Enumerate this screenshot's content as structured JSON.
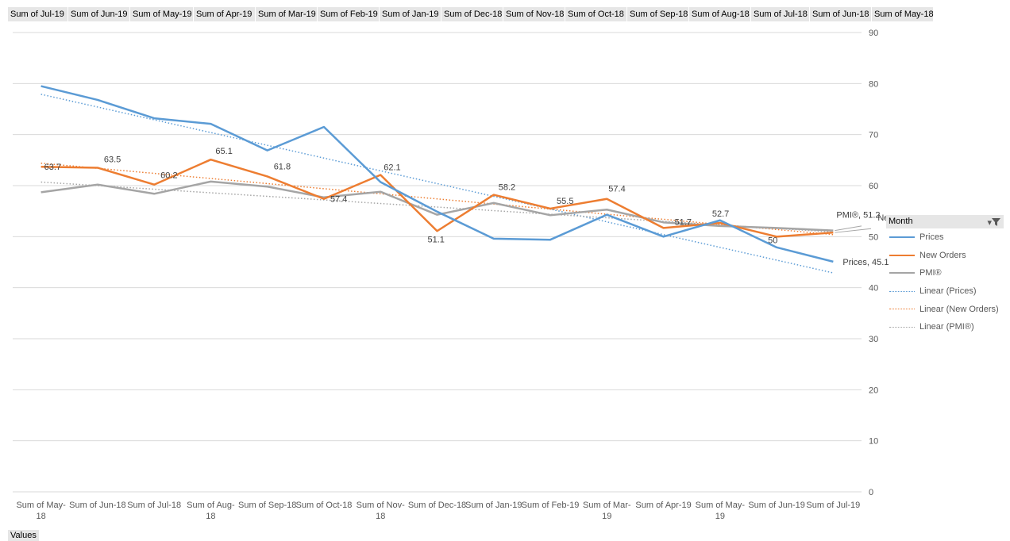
{
  "field_buttons": [
    "Sum of Jul-19",
    "Sum of Jun-19",
    "Sum of May-19",
    "Sum of Apr-19",
    "Sum of Mar-19",
    "Sum of Feb-19",
    "Sum of Jan-19",
    "Sum of Dec-18",
    "Sum of Nov-18",
    "Sum of Oct-18",
    "Sum of Sep-18",
    "Sum of Aug-18",
    "Sum of Jul-18",
    "Sum of Jun-18",
    "Sum of May-18"
  ],
  "legend": {
    "title": "Month",
    "filter_icon": "filter-dropdown-icon",
    "items": [
      {
        "label": "Prices",
        "color": "#5b9bd5",
        "style": "solid"
      },
      {
        "label": "New Orders",
        "color": "#ed7d31",
        "style": "solid"
      },
      {
        "label": "PMI®",
        "color": "#a5a5a5",
        "style": "solid"
      },
      {
        "label": "Linear (Prices)",
        "color": "#5b9bd5",
        "style": "dotted"
      },
      {
        "label": "Linear (New Orders)",
        "color": "#ed7d31",
        "style": "dotted"
      },
      {
        "label": "Linear (PMI®)",
        "color": "#a5a5a5",
        "style": "dotted"
      }
    ]
  },
  "values_button": "Values",
  "chart_data": {
    "type": "line",
    "categories": [
      [
        "Sum of May-",
        "18"
      ],
      [
        "Sum of Jun-18"
      ],
      [
        "Sum of Jul-18"
      ],
      [
        "Sum of Aug-",
        "18"
      ],
      [
        "Sum of Sep-18"
      ],
      [
        "Sum of Oct-18"
      ],
      [
        "Sum of Nov-",
        "18"
      ],
      [
        "Sum of Dec-18"
      ],
      [
        "Sum of Jan-19"
      ],
      [
        "Sum of Feb-19"
      ],
      [
        "Sum of Mar-",
        "19"
      ],
      [
        "Sum of Apr-19"
      ],
      [
        "Sum of May-",
        "19"
      ],
      [
        "Sum of Jun-19"
      ],
      [
        "Sum of Jul-19"
      ]
    ],
    "y_ticks": [
      "90",
      "80",
      "70",
      "60",
      "50",
      "40",
      "30",
      "20",
      "10",
      "0"
    ],
    "ylim": [
      0,
      90
    ],
    "grid": true,
    "y_axis_side": "right",
    "series": [
      {
        "name": "Prices",
        "color": "#5b9bd5",
        "values": [
          79.5,
          76.8,
          73.2,
          72.1,
          66.9,
          71.5,
          60.7,
          54.9,
          49.6,
          49.4,
          54.3,
          50.0,
          53.2,
          47.9,
          45.1
        ],
        "trend": [
          77.9,
          75.4,
          72.9,
          70.4,
          67.9,
          65.4,
          62.9,
          60.4,
          57.9,
          55.4,
          52.9,
          50.4,
          47.9,
          45.4,
          42.9
        ]
      },
      {
        "name": "New Orders",
        "color": "#ed7d31",
        "values": [
          63.7,
          63.5,
          60.2,
          65.1,
          61.8,
          57.4,
          62.1,
          51.1,
          58.2,
          55.5,
          57.4,
          51.7,
          52.7,
          50.0,
          50.8
        ],
        "trend": [
          64.4,
          63.4,
          62.4,
          61.4,
          60.4,
          59.4,
          58.4,
          57.4,
          56.4,
          55.4,
          54.4,
          53.4,
          52.4,
          51.4,
          50.4
        ]
      },
      {
        "name": "PMI®",
        "color": "#a5a5a5",
        "values": [
          58.7,
          60.2,
          58.4,
          60.8,
          59.8,
          57.7,
          58.8,
          54.3,
          56.6,
          54.2,
          55.3,
          52.8,
          52.1,
          51.7,
          51.2
        ],
        "trend": [
          60.7,
          60.0,
          59.3,
          58.6,
          57.9,
          57.2,
          56.5,
          55.8,
          55.1,
          54.4,
          53.7,
          53.0,
          52.3,
          51.6,
          50.9
        ]
      }
    ],
    "data_labels": [
      {
        "series": 1,
        "index": 0,
        "text": "63.7"
      },
      {
        "series": 1,
        "index": 1,
        "text": "63.5"
      },
      {
        "series": 1,
        "index": 2,
        "text": "60.2"
      },
      {
        "series": 1,
        "index": 3,
        "text": "65.1"
      },
      {
        "series": 1,
        "index": 4,
        "text": "61.8"
      },
      {
        "series": 1,
        "index": 5,
        "text": "57.4"
      },
      {
        "series": 1,
        "index": 6,
        "text": "62.1"
      },
      {
        "series": 1,
        "index": 7,
        "text": "51.1"
      },
      {
        "series": 1,
        "index": 8,
        "text": "58.2"
      },
      {
        "series": 1,
        "index": 9,
        "text": "55.5"
      },
      {
        "series": 1,
        "index": 10,
        "text": "57.4"
      },
      {
        "series": 1,
        "index": 11,
        "text": "51.7"
      },
      {
        "series": 1,
        "index": 12,
        "text": "52.7"
      },
      {
        "series": 1,
        "index": 13,
        "text": "50"
      },
      {
        "series": 0,
        "index": 14,
        "text": "Prices, 45.1"
      },
      {
        "series": 2,
        "index": 14,
        "text": "PMI®, 51.2"
      },
      {
        "series": 1,
        "index": 14,
        "text": "Ne"
      }
    ]
  }
}
